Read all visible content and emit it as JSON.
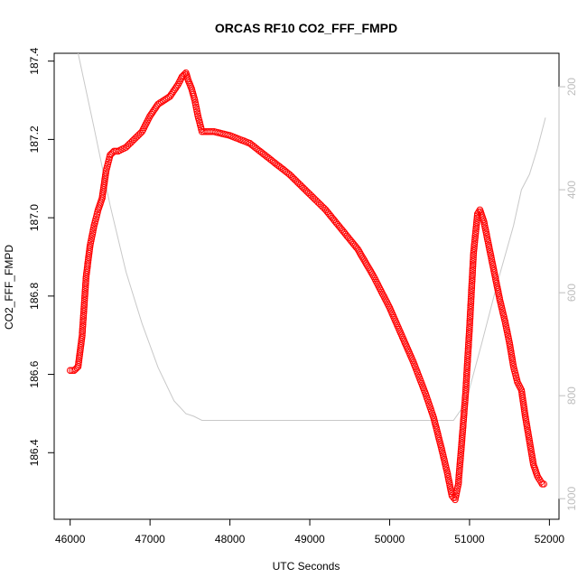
{
  "chart_data": {
    "type": "scatter",
    "title": "ORCAS RF10 CO2_FFF_FMPD",
    "xlabel": "UTC Seconds",
    "ylabel": "CO2_FFF_FMPD",
    "xlim": [
      45800,
      52120
    ],
    "ylim": [
      186.23,
      187.42
    ],
    "x_ticks": [
      46000,
      47000,
      48000,
      49000,
      50000,
      51000,
      52000
    ],
    "y_ticks": [
      186.4,
      186.6,
      186.8,
      187.0,
      187.2,
      187.4
    ],
    "y_tick_labels": [
      "186.4",
      "186.6",
      "186.8",
      "187.0",
      "187.2",
      "187.4"
    ],
    "secondary_axis": {
      "label": "",
      "range_top": 135,
      "range_bottom": 1040,
      "ticks": [
        200,
        400,
        600,
        800,
        1000
      ],
      "color": "#bdbdbd"
    },
    "series": [
      {
        "name": "CO2_FFF_FMPD",
        "marker": "circle",
        "color": "#ff0000",
        "x": [
          46000,
          46050,
          46100,
          46150,
          46200,
          46250,
          46300,
          46350,
          46400,
          46450,
          46500,
          46550,
          46600,
          46700,
          46800,
          46900,
          47000,
          47100,
          47250,
          47350,
          47400,
          47450,
          47480,
          47520,
          47560,
          47600,
          47650,
          47700,
          47800,
          48000,
          48250,
          48500,
          48750,
          49000,
          49200,
          49400,
          49600,
          49800,
          50000,
          50150,
          50300,
          50450,
          50550,
          50650,
          50720,
          50780,
          50820,
          50860,
          50900,
          50950,
          51000,
          51050,
          51100,
          51130,
          51180,
          51240,
          51300,
          51380,
          51450,
          51500,
          51550,
          51600,
          51650,
          51700,
          51750,
          51800,
          51850,
          51880,
          51910,
          51930
        ],
        "y": [
          186.61,
          186.61,
          186.62,
          186.7,
          186.85,
          186.93,
          186.98,
          187.02,
          187.05,
          187.12,
          187.16,
          187.17,
          187.17,
          187.18,
          187.2,
          187.22,
          187.26,
          187.29,
          187.31,
          187.34,
          187.36,
          187.37,
          187.35,
          187.33,
          187.3,
          187.26,
          187.22,
          187.22,
          187.22,
          187.21,
          187.19,
          187.15,
          187.11,
          187.06,
          187.02,
          186.97,
          186.92,
          186.85,
          186.77,
          186.7,
          186.63,
          186.55,
          186.49,
          186.41,
          186.35,
          186.29,
          186.28,
          186.32,
          186.42,
          186.55,
          186.72,
          186.91,
          187.01,
          187.02,
          186.99,
          186.93,
          186.87,
          186.79,
          186.73,
          186.68,
          186.62,
          186.58,
          186.56,
          186.49,
          186.43,
          186.37,
          186.34,
          186.33,
          186.32,
          186.32
        ]
      },
      {
        "name": "secondary (grey line)",
        "color": "#c8c8c8",
        "x": [
          46100,
          46300,
          46500,
          46700,
          46900,
          47100,
          47300,
          47450,
          47550,
          47650,
          48000,
          49000,
          50000,
          50500,
          50800,
          50950,
          51150,
          51350,
          51550,
          51650,
          51750,
          51850,
          51950
        ],
        "y2": [
          135,
          280,
          430,
          560,
          660,
          745,
          810,
          835,
          840,
          848,
          848,
          848,
          848,
          848,
          848,
          815,
          700,
          580,
          470,
          400,
          370,
          320,
          260
        ]
      }
    ]
  }
}
